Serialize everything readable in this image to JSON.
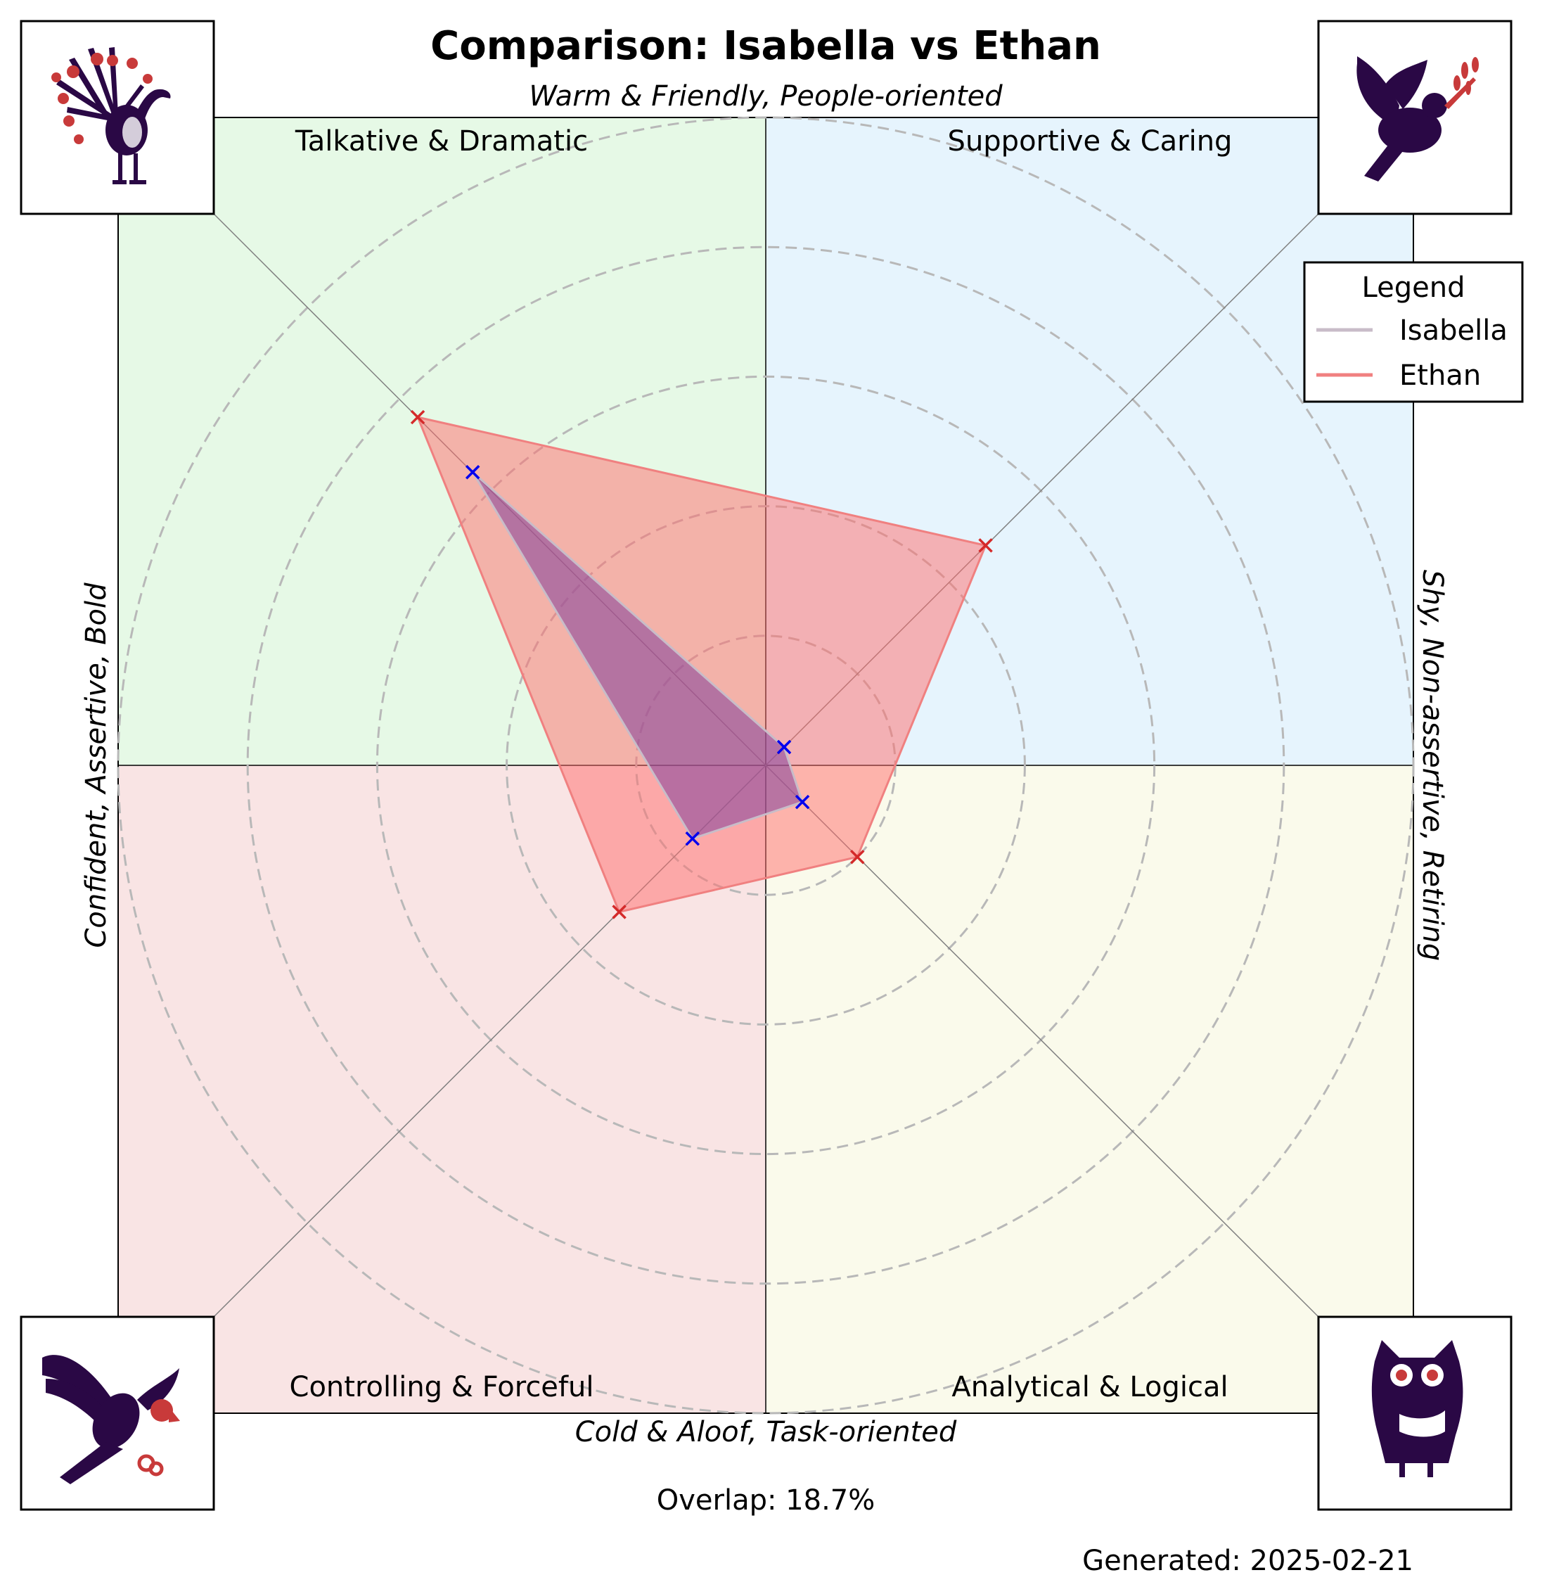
{
  "title": "Comparison: Isabella vs Ethan",
  "axes": {
    "top": "Warm & Friendly, People-oriented",
    "bottom": "Cold & Aloof, Task-oriented",
    "left": "Confident, Assertive, Bold",
    "right": "Shy, Non-assertive, Retiring"
  },
  "quadrants": {
    "top_left": "Talkative & Dramatic",
    "top_right": "Supportive & Caring",
    "bottom_left": "Controlling & Forceful",
    "bottom_right": "Analytical & Logical"
  },
  "quadrant_colors": {
    "top_left": "#e6f9e6",
    "top_right": "#e6f4fd",
    "bottom_left": "#f9e4e4",
    "bottom_right": "#fafaeb"
  },
  "icons": {
    "top_left": "peacock-icon",
    "top_right": "dove-icon",
    "bottom_left": "eagle-icon",
    "bottom_right": "owl-icon"
  },
  "legend": {
    "title": "Legend"
  },
  "overlap_text": "Overlap: 18.7%",
  "generated_text": "Generated: 2025-02-21",
  "colors": {
    "isabella_line": "#c8bcc8",
    "isabella_fill": "#8b4a9c",
    "isabella_marker": "#0000ee",
    "ethan_line": "#f08080",
    "ethan_fill": "#ff6b6b",
    "ethan_marker": "#d42a2a",
    "icon_dark": "#2a0845",
    "icon_accent": "#c83a3a"
  },
  "chart_data": {
    "type": "radar",
    "axes_order": [
      "Talkative & Dramatic",
      "Supportive & Caring",
      "Analytical & Logical",
      "Controlling & Forceful"
    ],
    "rmax": 10,
    "ring_step": 2,
    "series": [
      {
        "name": "Isabella",
        "values": [
          6.4,
          0.4,
          0.8,
          1.6
        ]
      },
      {
        "name": "Ethan",
        "values": [
          7.6,
          4.8,
          2.0,
          3.2
        ]
      }
    ]
  }
}
